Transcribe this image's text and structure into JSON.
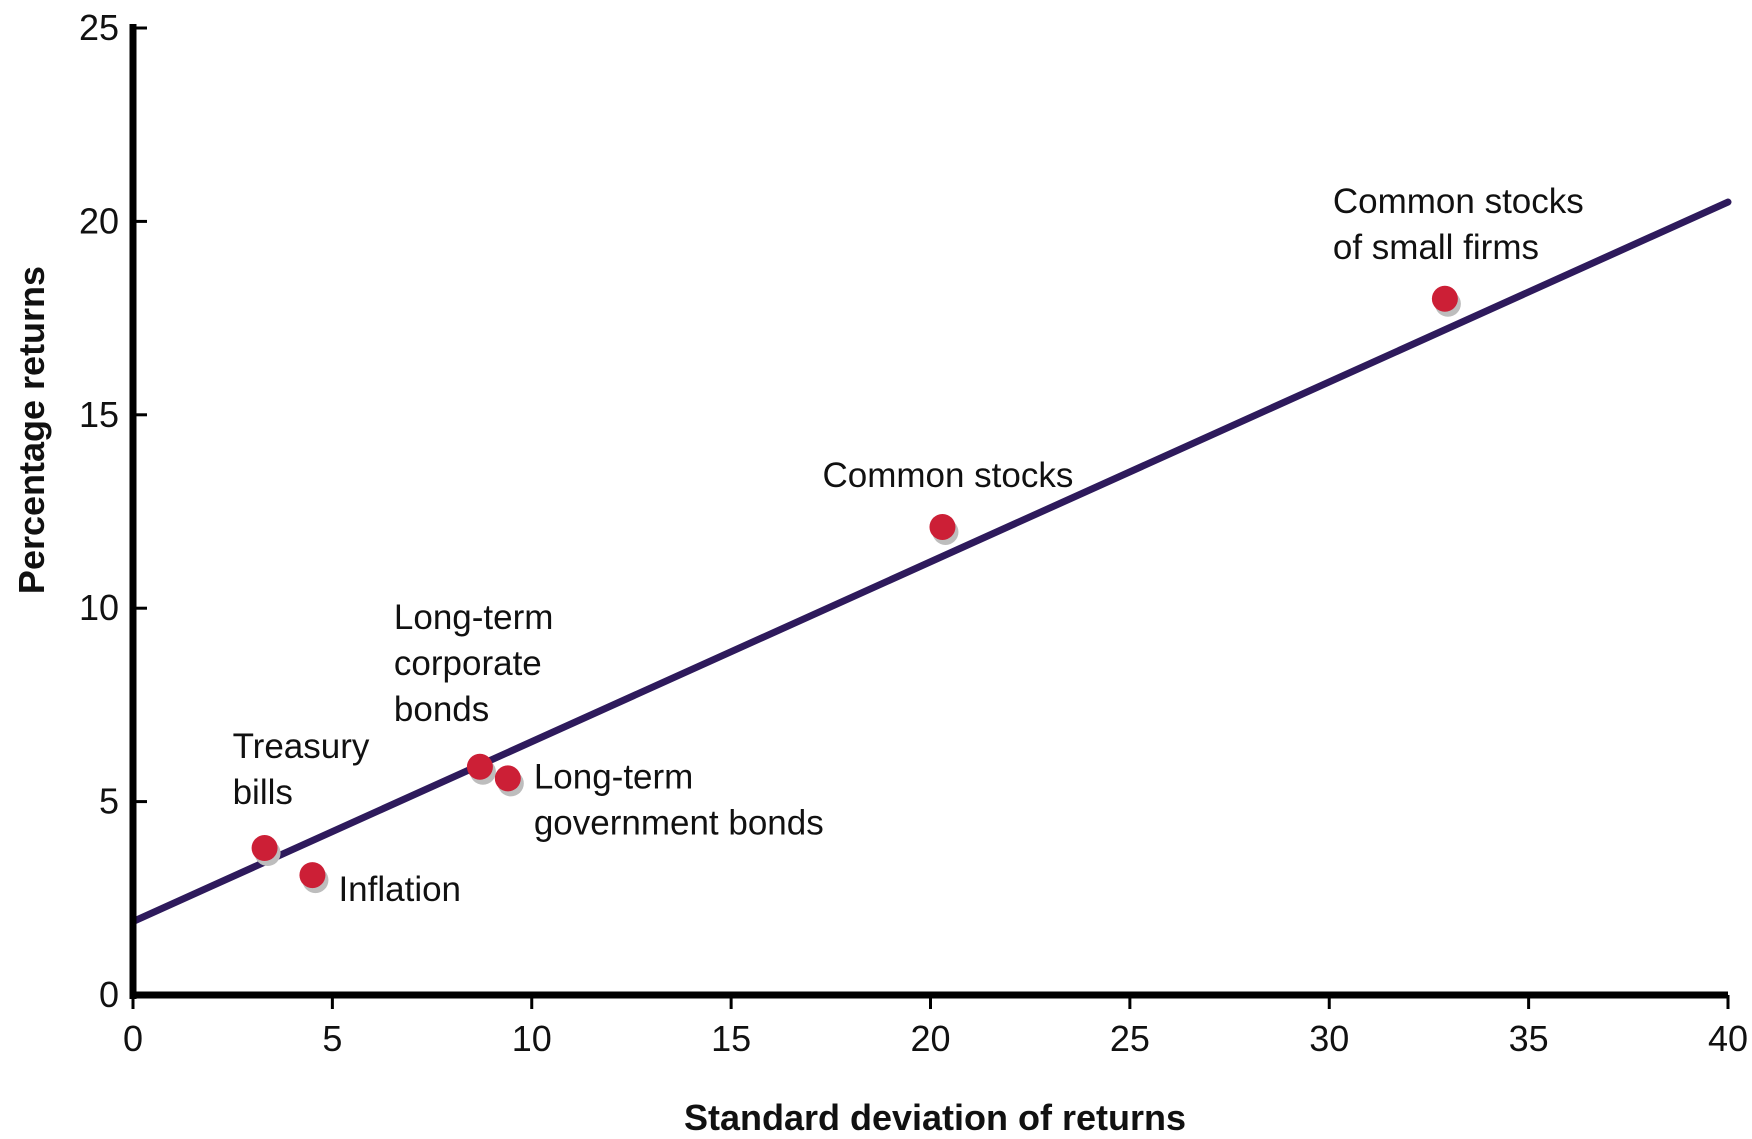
{
  "chart_data": {
    "type": "scatter",
    "title": "",
    "xlabel": "Standard deviation of returns",
    "ylabel": "Percentage returns",
    "xlim": [
      0,
      40
    ],
    "ylim": [
      0,
      25
    ],
    "x_ticks": [
      0,
      5,
      10,
      15,
      20,
      25,
      30,
      35,
      40
    ],
    "y_ticks": [
      0,
      5,
      10,
      15,
      20,
      25
    ],
    "grid": false,
    "point_color": "#cc1f36",
    "line_color": "#2e1a5c",
    "points": [
      {
        "label": "Treasury bills",
        "label_lines": [
          "Treasury",
          "bills"
        ],
        "x": 3.3,
        "y": 3.8
      },
      {
        "label": "Inflation",
        "label_lines": [
          "Inflation"
        ],
        "x": 4.5,
        "y": 3.1
      },
      {
        "label": "Long-term corporate bonds",
        "label_lines": [
          "Long-term",
          "corporate",
          "bonds"
        ],
        "x": 8.7,
        "y": 5.9
      },
      {
        "label": "Long-term government bonds",
        "label_lines": [
          "Long-term",
          "government bonds"
        ],
        "x": 9.4,
        "y": 5.6
      },
      {
        "label": "Common stocks",
        "label_lines": [
          "Common stocks"
        ],
        "x": 20.3,
        "y": 12.1
      },
      {
        "label": "Common stocks of small firms",
        "label_lines": [
          "Common stocks",
          "of small firms"
        ],
        "x": 32.9,
        "y": 18.0
      }
    ],
    "trend_line": {
      "x": [
        0,
        40
      ],
      "y": [
        1.9,
        20.5
      ]
    }
  }
}
